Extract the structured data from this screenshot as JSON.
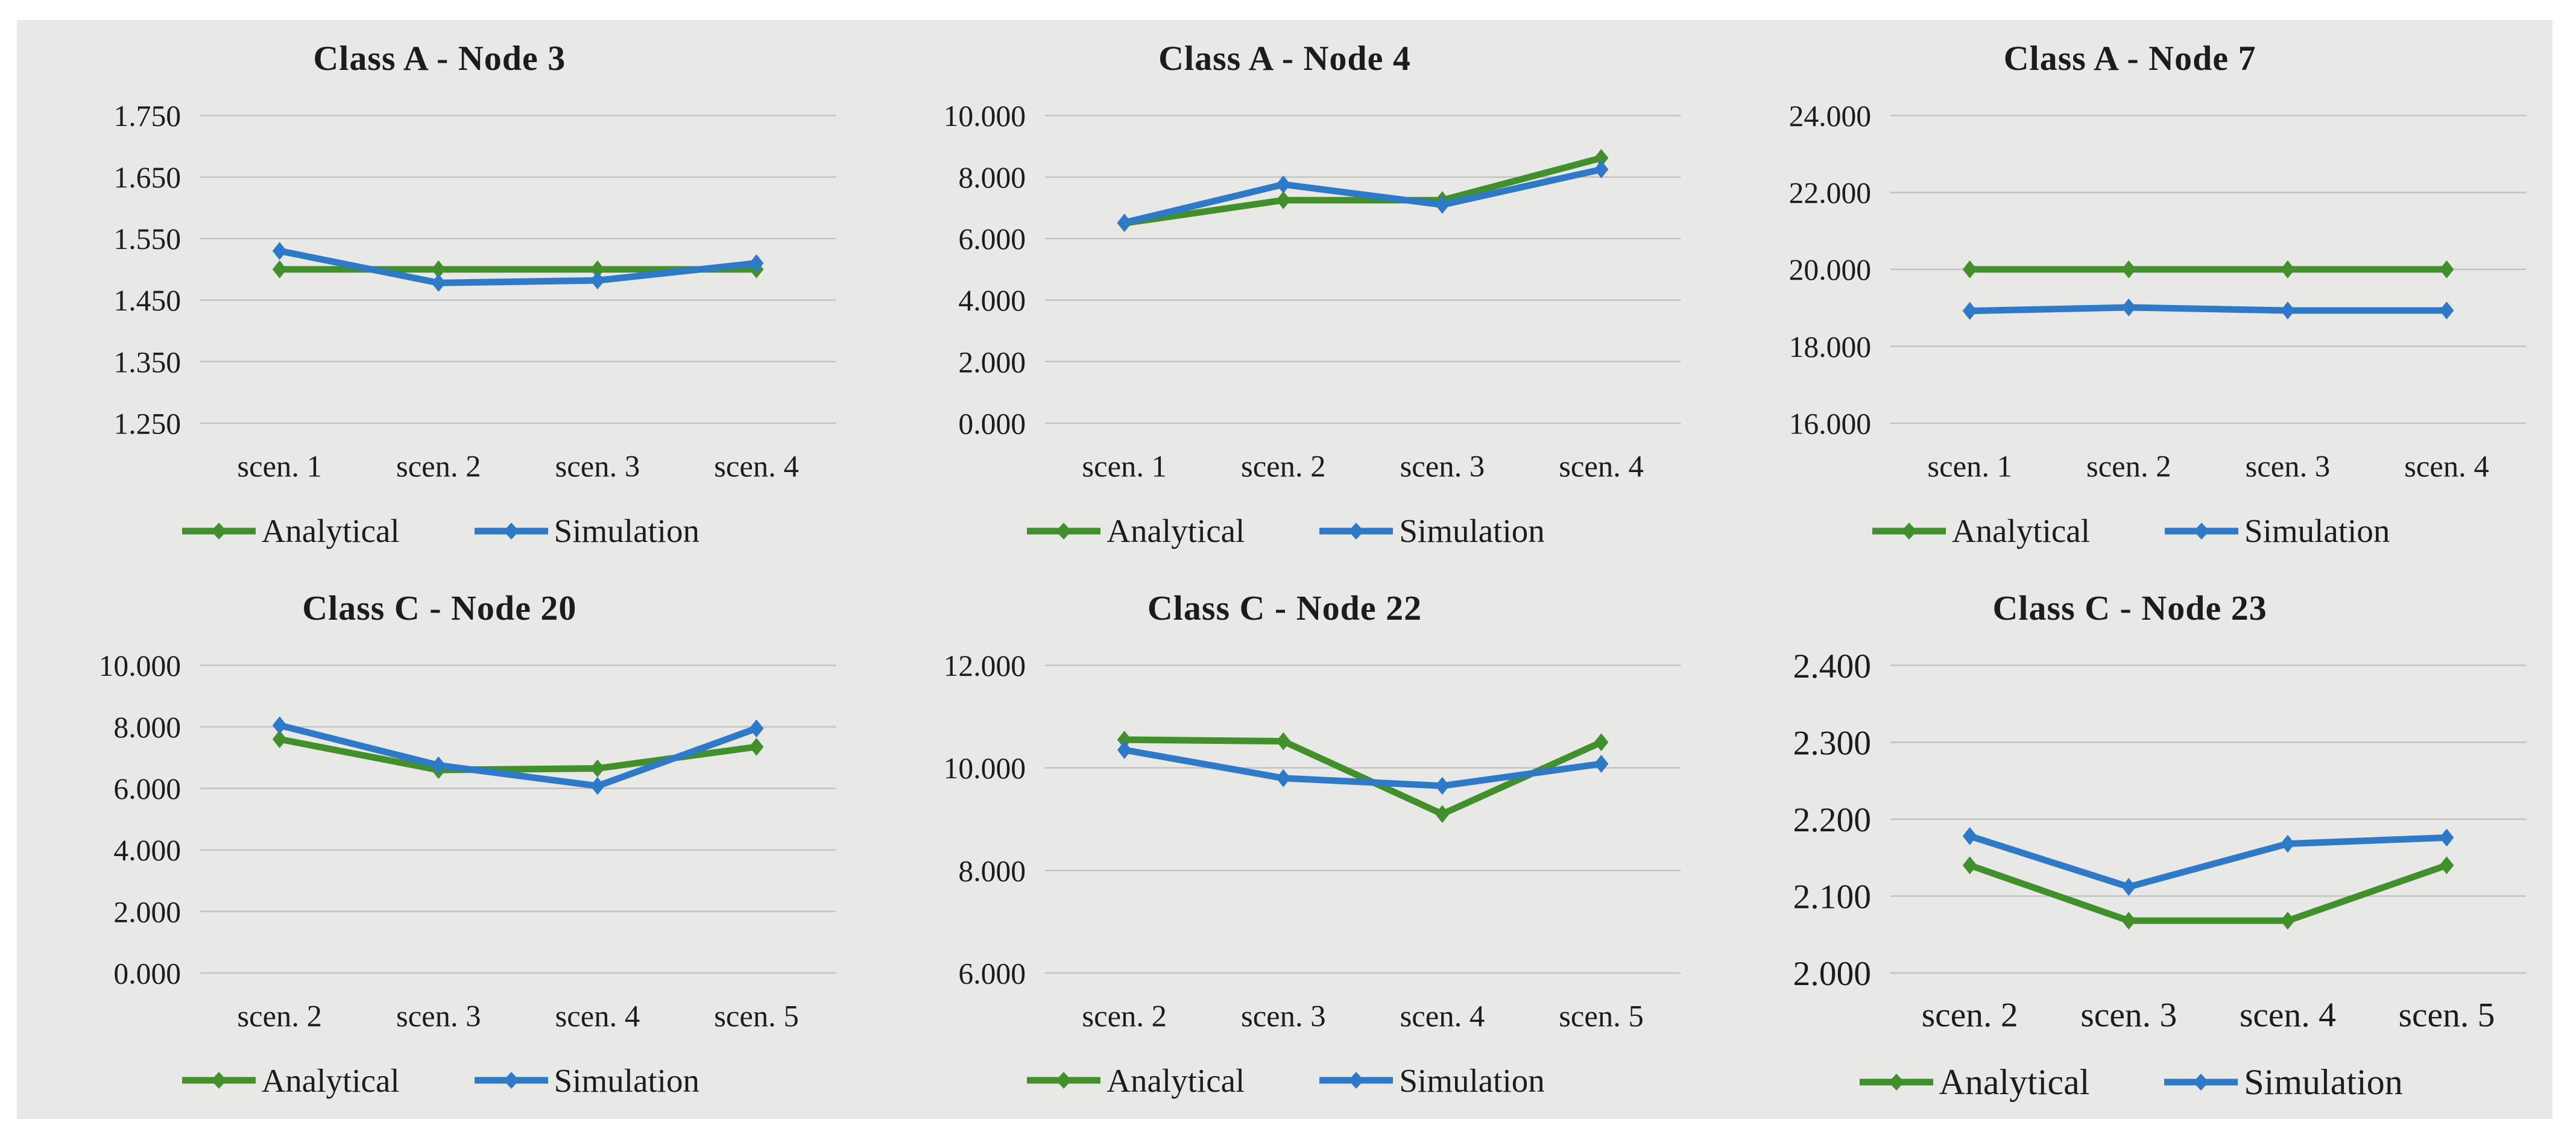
{
  "colors": {
    "analytical": "#41902C",
    "simulation": "#2E79C8",
    "panel_background": "#E8E8E7",
    "page_background": "#FFFFFF",
    "gridline": "#C3C3C3",
    "text": "#1C1C1C"
  },
  "legend": {
    "analytical_label": "Analytical",
    "simulation_label": "Simulation"
  },
  "chart_data": [
    {
      "type": "line",
      "title": "Class A - Node 3",
      "categories": [
        "scen. 1",
        "scen. 2",
        "scen. 3",
        "scen. 4"
      ],
      "series": [
        {
          "name": "Analytical",
          "values": [
            1500,
            1500,
            1500,
            1500
          ]
        },
        {
          "name": "Simulation",
          "values": [
            1530,
            1478,
            1482,
            1510
          ]
        }
      ],
      "ylim": [
        1250,
        1750
      ],
      "yticks": [
        {
          "label": "1.250",
          "value": 1250
        },
        {
          "label": "1.350",
          "value": 1350
        },
        {
          "label": "1.450",
          "value": 1450
        },
        {
          "label": "1.550",
          "value": 1550
        },
        {
          "label": "1.650",
          "value": 1650
        },
        {
          "label": "1.750",
          "value": 1750
        }
      ],
      "grid": true,
      "legend_position": "bottom"
    },
    {
      "type": "line",
      "title": "Class A - Node 4",
      "categories": [
        "scen. 1",
        "scen. 2",
        "scen. 3",
        "scen. 4"
      ],
      "series": [
        {
          "name": "Analytical",
          "values": [
            6500,
            7250,
            7250,
            8620
          ]
        },
        {
          "name": "Simulation",
          "values": [
            6520,
            7760,
            7100,
            8250
          ]
        }
      ],
      "ylim": [
        0,
        10000
      ],
      "yticks": [
        {
          "label": "0.000",
          "value": 0
        },
        {
          "label": "2.000",
          "value": 2000
        },
        {
          "label": "4.000",
          "value": 4000
        },
        {
          "label": "6.000",
          "value": 6000
        },
        {
          "label": "8.000",
          "value": 8000
        },
        {
          "label": "10.000",
          "value": 10000
        }
      ],
      "grid": true,
      "legend_position": "bottom"
    },
    {
      "type": "line",
      "title": "Class A - Node 7",
      "categories": [
        "scen. 1",
        "scen. 2",
        "scen. 3",
        "scen. 4"
      ],
      "series": [
        {
          "name": "Analytical",
          "values": [
            20000,
            20000,
            20000,
            20000
          ]
        },
        {
          "name": "Simulation",
          "values": [
            18920,
            19010,
            18930,
            18930
          ]
        }
      ],
      "ylim": [
        16000,
        24000
      ],
      "yticks": [
        {
          "label": "16.000",
          "value": 16000
        },
        {
          "label": "18.000",
          "value": 18000
        },
        {
          "label": "20.000",
          "value": 20000
        },
        {
          "label": "22.000",
          "value": 22000
        },
        {
          "label": "24.000",
          "value": 24000
        }
      ],
      "grid": true,
      "legend_position": "bottom"
    },
    {
      "type": "line",
      "title": "Class C - Node 20",
      "categories": [
        "scen. 2",
        "scen. 3",
        "scen. 4",
        "scen. 5"
      ],
      "series": [
        {
          "name": "Analytical",
          "values": [
            7600,
            6600,
            6650,
            7350
          ]
        },
        {
          "name": "Simulation",
          "values": [
            8050,
            6750,
            6080,
            7950
          ]
        }
      ],
      "ylim": [
        0,
        10000
      ],
      "yticks": [
        {
          "label": "0.000",
          "value": 0
        },
        {
          "label": "2.000",
          "value": 2000
        },
        {
          "label": "4.000",
          "value": 4000
        },
        {
          "label": "6.000",
          "value": 6000
        },
        {
          "label": "8.000",
          "value": 8000
        },
        {
          "label": "10.000",
          "value": 10000
        }
      ],
      "grid": true,
      "legend_position": "bottom"
    },
    {
      "type": "line",
      "title": "Class C - Node 22",
      "categories": [
        "scen. 2",
        "scen. 3",
        "scen. 4",
        "scen. 5"
      ],
      "series": [
        {
          "name": "Analytical",
          "values": [
            10550,
            10520,
            9100,
            10500
          ]
        },
        {
          "name": "Simulation",
          "values": [
            10350,
            9800,
            9650,
            10080
          ]
        }
      ],
      "ylim": [
        6000,
        12000
      ],
      "yticks": [
        {
          "label": "6.000",
          "value": 6000
        },
        {
          "label": "8.000",
          "value": 8000
        },
        {
          "label": "10.000",
          "value": 10000
        },
        {
          "label": "12.000",
          "value": 12000
        }
      ],
      "grid": true,
      "legend_position": "bottom"
    },
    {
      "type": "line",
      "title": "Class C - Node 23",
      "categories": [
        "scen. 2",
        "scen. 3",
        "scen. 4",
        "scen. 5"
      ],
      "series": [
        {
          "name": "Analytical",
          "values": [
            2140,
            2068,
            2068,
            2140
          ]
        },
        {
          "name": "Simulation",
          "values": [
            2178,
            2112,
            2168,
            2176
          ]
        }
      ],
      "ylim": [
        2000,
        2400
      ],
      "yticks": [
        {
          "label": "2.000",
          "value": 2000
        },
        {
          "label": "2.100",
          "value": 2100
        },
        {
          "label": "2.200",
          "value": 2200
        },
        {
          "label": "2.300",
          "value": 2300
        },
        {
          "label": "2.400",
          "value": 2400
        }
      ],
      "grid": true,
      "legend_position": "bottom"
    }
  ]
}
